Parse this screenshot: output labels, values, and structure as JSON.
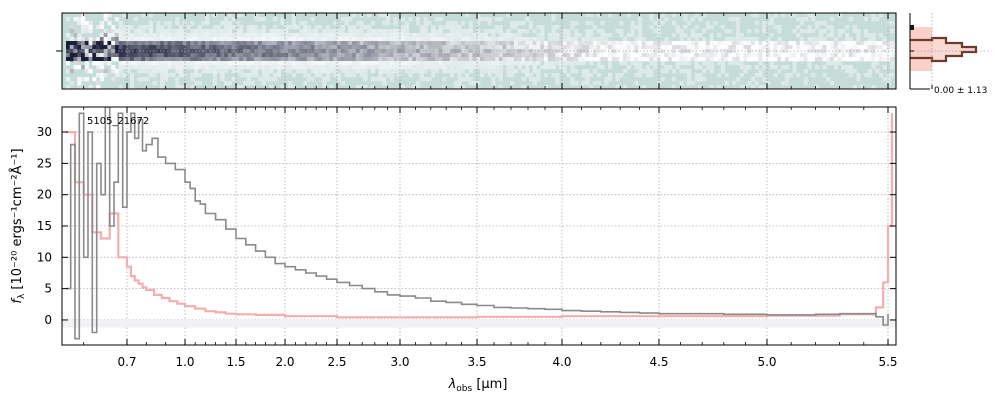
{
  "chart_data": [
    {
      "panel": "2d-spectrum",
      "type": "heatmap",
      "description_visible": "2D spectrum strip",
      "bg_color": "#c6dcd9",
      "trace_color": "#1a1f3a"
    },
    {
      "panel": "profile",
      "type": "line",
      "stat_label": "0.00 ± 1.13",
      "fill_color": "#f9c9c0",
      "line_color": "#6b3a2a"
    },
    {
      "panel": "1d-spectrum",
      "type": "line",
      "annotation": "5105_21672",
      "xlabel_main": "λ",
      "xlabel_sub": "obs",
      "xlabel_unit": " [μm]",
      "ylabel_main": "f",
      "ylabel_sub": "λ",
      "ylabel_unit": " [10⁻²⁰ ergs⁻¹cm⁻²Å⁻¹]",
      "x_ticks": [
        "0.7",
        "1.0",
        "1.5",
        "2.0",
        "2.5",
        "3.0",
        "3.5",
        "4.0",
        "4.5",
        "5.0",
        "5.5"
      ],
      "x_tick_values": [
        0.7,
        1.0,
        1.5,
        2.0,
        2.5,
        3.0,
        3.5,
        4.0,
        4.5,
        5.0,
        5.5
      ],
      "y_ticks": [
        "0",
        "5",
        "10",
        "15",
        "20",
        "25",
        "30"
      ],
      "y_tick_values": [
        0,
        5,
        10,
        15,
        20,
        25,
        30
      ],
      "xlim": [
        0.55,
        5.52
      ],
      "ylim": [
        -4,
        34
      ],
      "grid": true,
      "series": [
        {
          "color": "#8a8a8a",
          "x": [
            0.56,
            0.57,
            0.58,
            0.59,
            0.6,
            0.61,
            0.62,
            0.63,
            0.64,
            0.65,
            0.66,
            0.67,
            0.68,
            0.69,
            0.7,
            0.72,
            0.74,
            0.76,
            0.78,
            0.8,
            0.83,
            0.86,
            0.9,
            0.95,
            1.0,
            1.05,
            1.1,
            1.15,
            1.2,
            1.3,
            1.4,
            1.5,
            1.6,
            1.7,
            1.8,
            1.9,
            2.0,
            2.1,
            2.2,
            2.3,
            2.4,
            2.5,
            2.6,
            2.7,
            2.8,
            2.9,
            3.0,
            3.1,
            3.2,
            3.3,
            3.4,
            3.5,
            3.6,
            3.7,
            3.8,
            3.9,
            4.0,
            4.1,
            4.2,
            4.3,
            4.4,
            4.5,
            4.6,
            4.7,
            4.8,
            4.9,
            5.0,
            5.1,
            5.2,
            5.3,
            5.4,
            5.45,
            5.48,
            5.5
          ],
          "y": [
            5,
            28,
            -3,
            33,
            10,
            30,
            -2,
            25,
            20,
            34,
            15,
            22,
            33,
            18,
            30,
            33,
            29,
            32,
            27,
            28,
            29,
            26,
            25,
            24,
            22,
            21,
            19,
            18.5,
            17,
            16,
            14.5,
            13,
            12,
            11,
            10,
            9,
            8.5,
            8,
            7.5,
            7,
            6.5,
            6,
            5.5,
            5,
            4.5,
            4,
            3.8,
            3.5,
            3,
            2.8,
            2.5,
            2.3,
            2,
            1.9,
            1.8,
            1.7,
            1.5,
            1.4,
            1.3,
            1.2,
            1.1,
            1.0,
            1.0,
            1.0,
            0.9,
            0.9,
            0.8,
            0.8,
            0.9,
            1.0,
            1.0,
            0.5,
            -0.8,
            1.0
          ]
        },
        {
          "color": "#f4aeae",
          "x": [
            0.56,
            0.58,
            0.6,
            0.62,
            0.64,
            0.66,
            0.68,
            0.7,
            0.72,
            0.74,
            0.76,
            0.78,
            0.8,
            0.84,
            0.88,
            0.92,
            0.96,
            1.0,
            1.1,
            1.2,
            1.3,
            1.4,
            1.5,
            1.7,
            2.0,
            2.5,
            3.0,
            3.5,
            4.0,
            4.5,
            5.0,
            5.3,
            5.45,
            5.48,
            5.5,
            5.51
          ],
          "y": [
            30,
            22,
            20,
            14,
            13,
            17,
            10,
            8.5,
            7,
            6.3,
            5.8,
            5.2,
            4.8,
            4.0,
            3.5,
            3.0,
            2.6,
            2.2,
            1.8,
            1.4,
            1.2,
            1.0,
            0.9,
            0.8,
            0.6,
            0.4,
            0.4,
            0.5,
            0.6,
            0.6,
            0.7,
            0.9,
            2.0,
            6,
            15,
            33
          ]
        }
      ]
    }
  ]
}
